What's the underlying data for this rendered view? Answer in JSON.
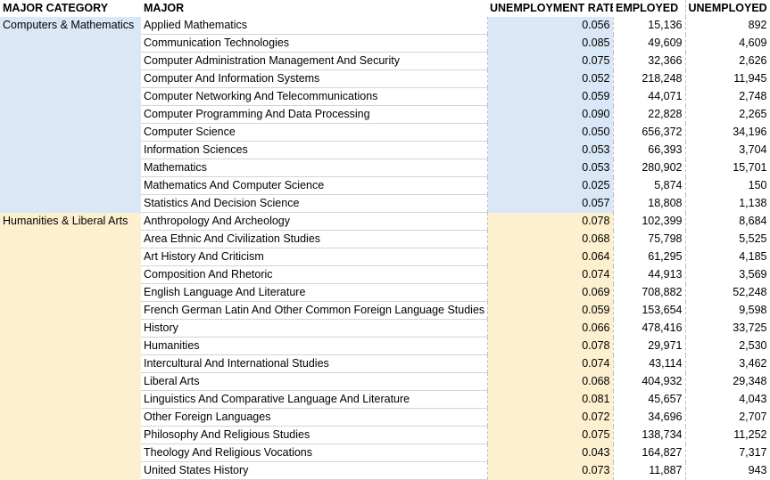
{
  "headers": {
    "category": "MAJOR CATEGORY",
    "major": "MAJOR",
    "rate": "UNEMPLOYMENT RATE",
    "employed": "EMPLOYED",
    "unemployed": "UNEMPLOYED"
  },
  "colors": {
    "computers": "#dae7f6",
    "humanities": "#fdf0cf"
  },
  "groups": [
    {
      "category": "Computers & Mathematics",
      "color": "blue",
      "rows": [
        {
          "major": "Applied Mathematics",
          "rate": "0.056",
          "employed": "15,136",
          "unemployed": "892"
        },
        {
          "major": "Communication Technologies",
          "rate": "0.085",
          "employed": "49,609",
          "unemployed": "4,609"
        },
        {
          "major": "Computer Administration Management And Security",
          "rate": "0.075",
          "employed": "32,366",
          "unemployed": "2,626"
        },
        {
          "major": "Computer And Information Systems",
          "rate": "0.052",
          "employed": "218,248",
          "unemployed": "11,945"
        },
        {
          "major": "Computer Networking And Telecommunications",
          "rate": "0.059",
          "employed": "44,071",
          "unemployed": "2,748"
        },
        {
          "major": "Computer Programming And Data Processing",
          "rate": "0.090",
          "employed": "22,828",
          "unemployed": "2,265"
        },
        {
          "major": "Computer Science",
          "rate": "0.050",
          "employed": "656,372",
          "unemployed": "34,196"
        },
        {
          "major": "Information Sciences",
          "rate": "0.053",
          "employed": "66,393",
          "unemployed": "3,704"
        },
        {
          "major": "Mathematics",
          "rate": "0.053",
          "employed": "280,902",
          "unemployed": "15,701"
        },
        {
          "major": "Mathematics And Computer Science",
          "rate": "0.025",
          "employed": "5,874",
          "unemployed": "150"
        },
        {
          "major": "Statistics And Decision Science",
          "rate": "0.057",
          "employed": "18,808",
          "unemployed": "1,138"
        }
      ]
    },
    {
      "category": "Humanities & Liberal Arts",
      "color": "yellow",
      "rows": [
        {
          "major": "Anthropology And Archeology",
          "rate": "0.078",
          "employed": "102,399",
          "unemployed": "8,684"
        },
        {
          "major": "Area Ethnic And Civilization Studies",
          "rate": "0.068",
          "employed": "75,798",
          "unemployed": "5,525"
        },
        {
          "major": "Art History And Criticism",
          "rate": "0.064",
          "employed": "61,295",
          "unemployed": "4,185"
        },
        {
          "major": "Composition And Rhetoric",
          "rate": "0.074",
          "employed": "44,913",
          "unemployed": "3,569"
        },
        {
          "major": "English Language And Literature",
          "rate": "0.069",
          "employed": "708,882",
          "unemployed": "52,248"
        },
        {
          "major": "French German Latin And Other Common Foreign Language Studies",
          "rate": "0.059",
          "employed": "153,654",
          "unemployed": "9,598"
        },
        {
          "major": "History",
          "rate": "0.066",
          "employed": "478,416",
          "unemployed": "33,725"
        },
        {
          "major": "Humanities",
          "rate": "0.078",
          "employed": "29,971",
          "unemployed": "2,530"
        },
        {
          "major": "Intercultural And International Studies",
          "rate": "0.074",
          "employed": "43,114",
          "unemployed": "3,462"
        },
        {
          "major": "Liberal Arts",
          "rate": "0.068",
          "employed": "404,932",
          "unemployed": "29,348"
        },
        {
          "major": "Linguistics And Comparative Language And Literature",
          "rate": "0.081",
          "employed": "45,657",
          "unemployed": "4,043"
        },
        {
          "major": "Other Foreign Languages",
          "rate": "0.072",
          "employed": "34,696",
          "unemployed": "2,707"
        },
        {
          "major": "Philosophy And Religious Studies",
          "rate": "0.075",
          "employed": "138,734",
          "unemployed": "11,252"
        },
        {
          "major": "Theology And Religious Vocations",
          "rate": "0.043",
          "employed": "164,827",
          "unemployed": "7,317"
        },
        {
          "major": "United States History",
          "rate": "0.073",
          "employed": "11,887",
          "unemployed": "943"
        }
      ]
    }
  ]
}
